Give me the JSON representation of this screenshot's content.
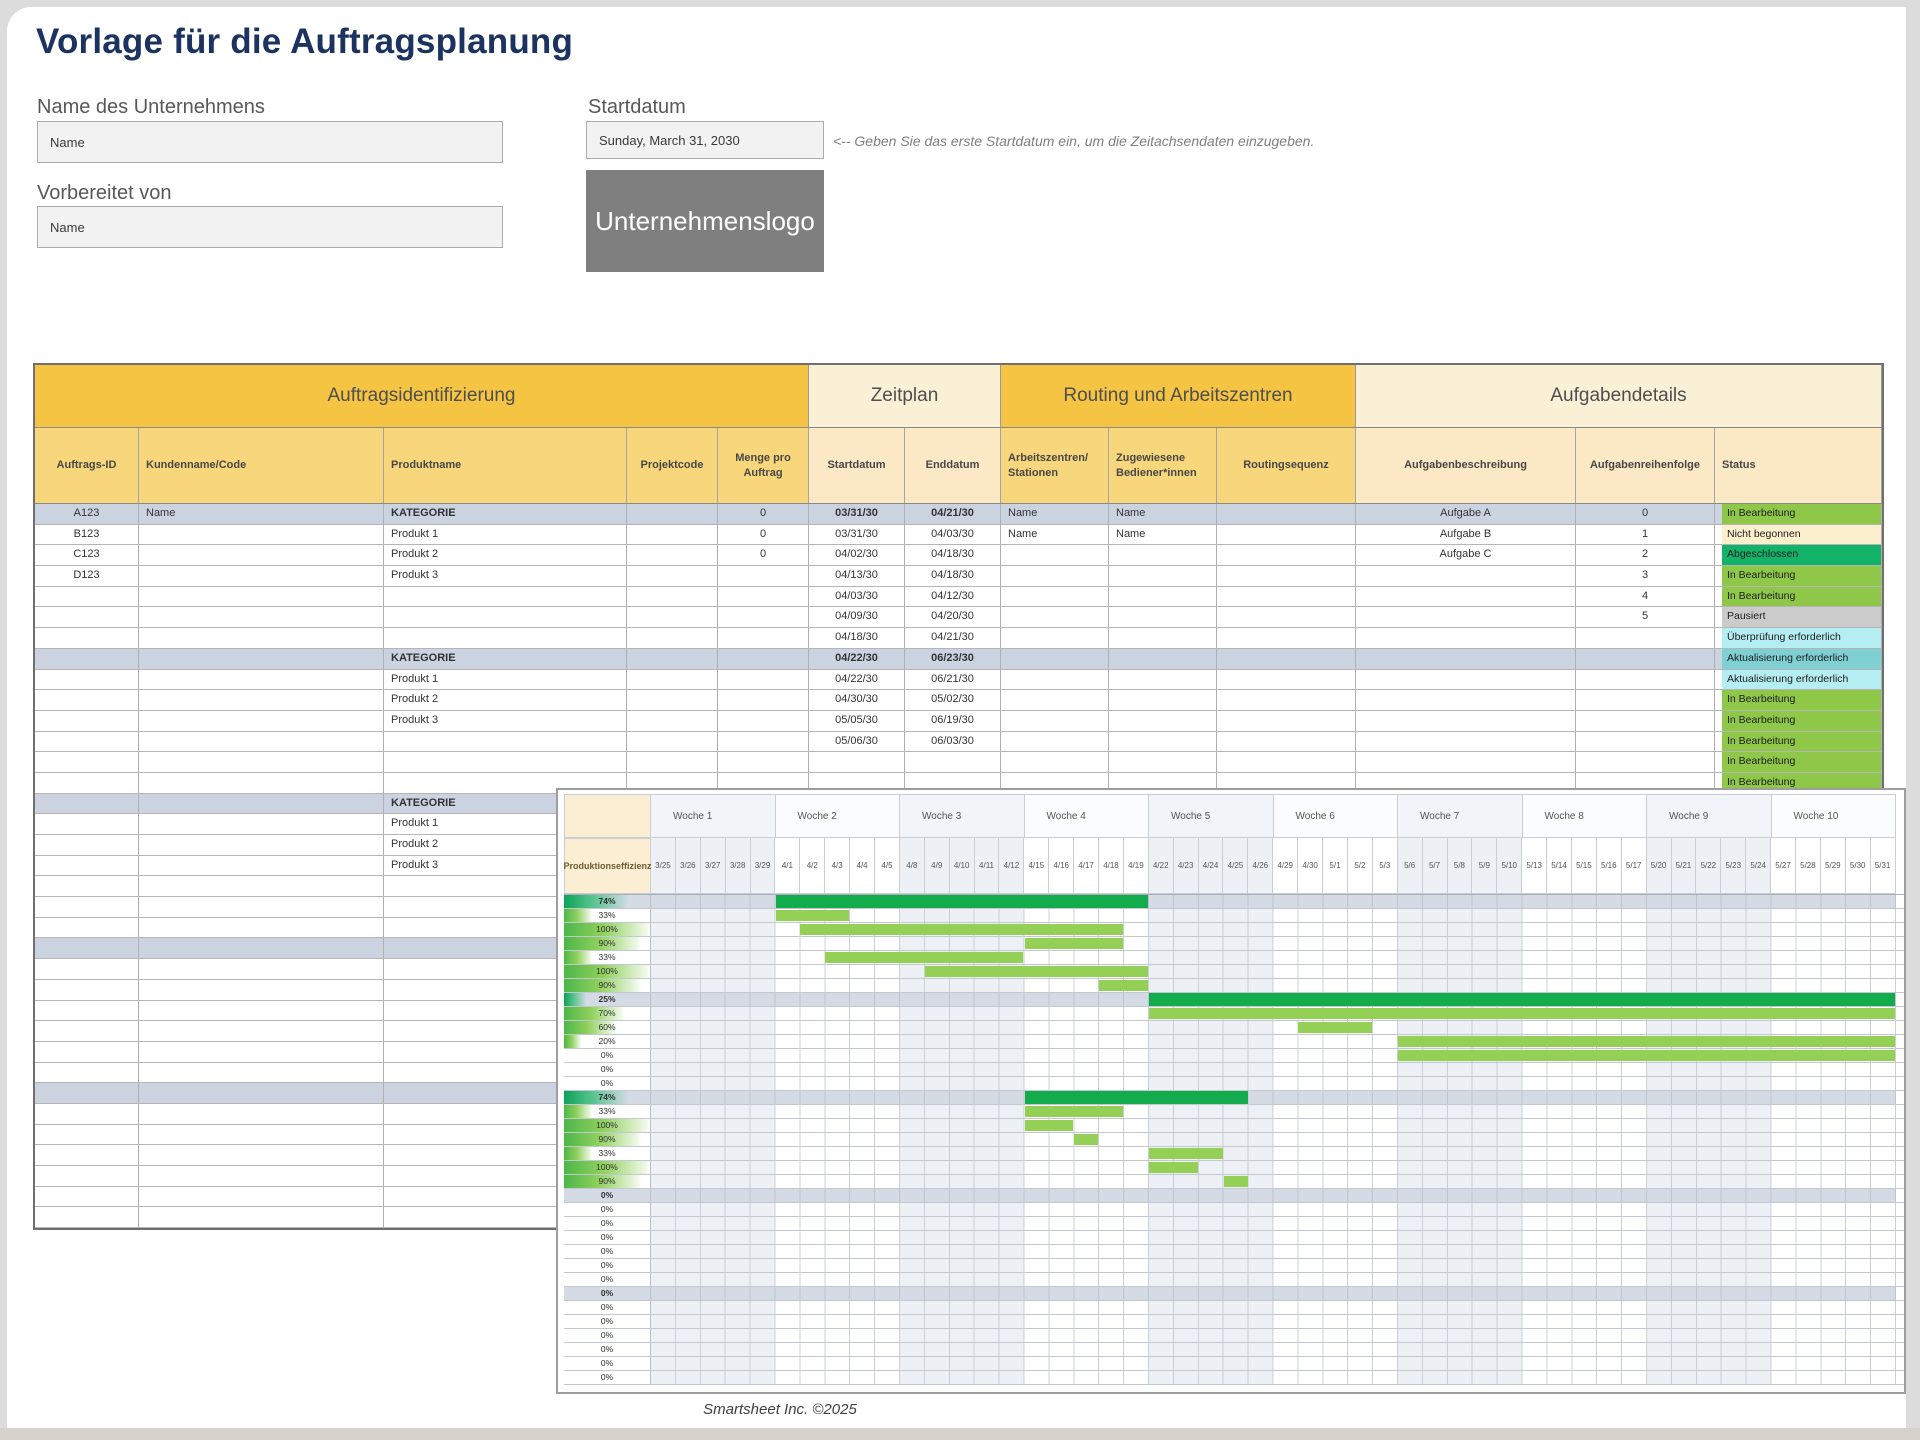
{
  "header": {
    "title": "Vorlage für die Auftragsplanung"
  },
  "form": {
    "company_label": "Name des Unternehmens",
    "company_value": "Name",
    "prepared_label": "Vorbereitet von",
    "prepared_value": "Name",
    "startdate_label": "Startdatum",
    "startdate_value": "Sunday, March 31, 2030",
    "hint": "<-- Geben Sie das erste Startdatum ein, um die Zeitachsendaten einzugeben.",
    "logo_text": "Unternehmenslogo"
  },
  "table": {
    "sections": [
      {
        "label": "Auftragsidentifizierung",
        "span": 5
      },
      {
        "label": "Zeitplan",
        "span": 2
      },
      {
        "label": "Routing und Arbeitszentren",
        "span": 3
      },
      {
        "label": "Aufgabendetails",
        "span": 3
      }
    ],
    "columns": [
      "Auftrags-ID",
      "Kundenname/Code",
      "Produktname",
      "Projektcode",
      "Menge pro Auftrag",
      "Startdatum",
      "Enddatum",
      "Arbeitszentren/ Stationen",
      "Zugewiesene Bediener*innen",
      "Routingsequenz",
      "Aufgabenbeschreibung",
      "Aufgabenreihenfolge",
      "Status"
    ],
    "rows": [
      {
        "cat": true,
        "sc": "green",
        "c": [
          "A123",
          "Name",
          "KATEGORIE",
          "",
          "0",
          "03/31/30",
          "04/21/30",
          "Name",
          "Name",
          "",
          "Aufgabe A",
          "0",
          "In Bearbeitung"
        ]
      },
      {
        "sc": "cream",
        "c": [
          "B123",
          "",
          "Produkt 1",
          "",
          "0",
          "03/31/30",
          "04/03/30",
          "Name",
          "Name",
          "",
          "Aufgabe B",
          "1",
          "Nicht begonnen"
        ]
      },
      {
        "sc": "emerald",
        "c": [
          "C123",
          "",
          "Produkt 2",
          "",
          "0",
          "04/02/30",
          "04/18/30",
          "",
          "",
          "",
          "Aufgabe C",
          "2",
          "Abgeschlossen"
        ]
      },
      {
        "sc": "green",
        "c": [
          "D123",
          "",
          "Produkt 3",
          "",
          "",
          "04/13/30",
          "04/18/30",
          "",
          "",
          "",
          "",
          "3",
          "In Bearbeitung"
        ]
      },
      {
        "sc": "green",
        "c": [
          "",
          "",
          "",
          "",
          "",
          "04/03/30",
          "04/12/30",
          "",
          "",
          "",
          "",
          "4",
          "In Bearbeitung"
        ]
      },
      {
        "sc": "gray",
        "c": [
          "",
          "",
          "",
          "",
          "",
          "04/09/30",
          "04/20/30",
          "",
          "",
          "",
          "",
          "5",
          "Pausiert"
        ]
      },
      {
        "sc": "cyan",
        "c": [
          "",
          "",
          "",
          "",
          "",
          "04/18/30",
          "04/21/30",
          "",
          "",
          "",
          "",
          "",
          "Überprüfung erforderlich"
        ]
      },
      {
        "cat": true,
        "sc": "teal",
        "c": [
          "",
          "",
          "KATEGORIE",
          "",
          "",
          "04/22/30",
          "06/23/30",
          "",
          "",
          "",
          "",
          "",
          "Aktualisierung erforderlich"
        ]
      },
      {
        "sc": "cyan",
        "c": [
          "",
          "",
          "Produkt 1",
          "",
          "",
          "04/22/30",
          "06/21/30",
          "",
          "",
          "",
          "",
          "",
          "Aktualisierung erforderlich"
        ]
      },
      {
        "sc": "green",
        "c": [
          "",
          "",
          "Produkt 2",
          "",
          "",
          "04/30/30",
          "05/02/30",
          "",
          "",
          "",
          "",
          "",
          "In Bearbeitung"
        ]
      },
      {
        "sc": "green",
        "c": [
          "",
          "",
          "Produkt 3",
          "",
          "",
          "05/05/30",
          "06/19/30",
          "",
          "",
          "",
          "",
          "",
          "In Bearbeitung"
        ]
      },
      {
        "sc": "green",
        "c": [
          "",
          "",
          "",
          "",
          "",
          "05/06/30",
          "06/03/30",
          "",
          "",
          "",
          "",
          "",
          "In Bearbeitung"
        ]
      },
      {
        "sc": "green",
        "c": [
          "",
          "",
          "",
          "",
          "",
          "",
          "",
          "",
          "",
          "",
          "",
          "",
          "In Bearbeitung"
        ]
      },
      {
        "sc": "green",
        "c": [
          "",
          "",
          "",
          "",
          "",
          "",
          "",
          "",
          "",
          "",
          "",
          "",
          "In Bearbeitung"
        ]
      },
      {
        "cat": true,
        "c": [
          "",
          "",
          "KATEGORIE",
          "",
          "",
          "",
          "",
          "",
          "",
          "",
          "",
          "",
          ""
        ]
      },
      {
        "c": [
          "",
          "",
          "Produkt 1",
          "",
          "",
          "",
          "",
          "",
          "",
          "",
          "",
          "",
          ""
        ]
      },
      {
        "c": [
          "",
          "",
          "Produkt 2",
          "",
          "",
          "",
          "",
          "",
          "",
          "",
          "",
          "",
          ""
        ]
      },
      {
        "c": [
          "",
          "",
          "Produkt 3",
          "",
          "",
          "",
          "",
          "",
          "",
          "",
          "",
          "",
          ""
        ]
      },
      {
        "c": []
      },
      {
        "c": []
      },
      {
        "c": []
      },
      {
        "cat": true,
        "c": []
      },
      {
        "c": []
      },
      {
        "c": []
      },
      {
        "c": []
      },
      {
        "c": []
      },
      {
        "c": []
      },
      {
        "c": []
      },
      {
        "cat": true,
        "c": []
      },
      {
        "c": []
      },
      {
        "c": []
      },
      {
        "c": []
      },
      {
        "c": []
      },
      {
        "c": []
      },
      {
        "c": []
      }
    ]
  },
  "gantt": {
    "corner_label": "Produktionseffizienz",
    "weeks": [
      "Woche 1",
      "Woche 2",
      "Woche 3",
      "Woche 4",
      "Woche 5",
      "Woche 6",
      "Woche 7",
      "Woche 8",
      "Woche 9",
      "Woche 10"
    ],
    "days": [
      "3/25",
      "3/26",
      "3/27",
      "3/28",
      "3/29",
      "4/1",
      "4/2",
      "4/3",
      "4/4",
      "4/5",
      "4/8",
      "4/9",
      "4/10",
      "4/11",
      "4/12",
      "4/15",
      "4/16",
      "4/17",
      "4/18",
      "4/19",
      "4/22",
      "4/23",
      "4/24",
      "4/25",
      "4/26",
      "4/29",
      "4/30",
      "5/1",
      "5/2",
      "5/3",
      "5/6",
      "5/7",
      "5/8",
      "5/9",
      "5/10",
      "5/13",
      "5/14",
      "5/15",
      "5/16",
      "5/17",
      "5/20",
      "5/21",
      "5/22",
      "5/23",
      "5/24",
      "5/27",
      "5/28",
      "5/29",
      "5/30",
      "5/31"
    ],
    "rows": [
      {
        "e": "74%",
        "b": 1,
        "bar": [
          5,
          19,
          1
        ]
      },
      {
        "e": "33%",
        "bar": [
          5,
          7,
          0
        ]
      },
      {
        "e": "100%",
        "bar": [
          6,
          18,
          0
        ]
      },
      {
        "e": "90%",
        "bar": [
          15,
          18,
          0
        ]
      },
      {
        "e": "33%",
        "bar": [
          7,
          14,
          0
        ]
      },
      {
        "e": "100%",
        "bar": [
          11,
          19,
          0
        ]
      },
      {
        "e": "90%",
        "bar": [
          18,
          19,
          0
        ]
      },
      {
        "e": "25%",
        "b": 1,
        "bar": [
          20,
          49,
          1
        ]
      },
      {
        "e": "70%",
        "bar": [
          20,
          49,
          0
        ]
      },
      {
        "e": "60%",
        "bar": [
          26,
          28,
          0
        ]
      },
      {
        "e": "20%",
        "bar": [
          30,
          49,
          0
        ]
      },
      {
        "e": "0%",
        "bar": [
          30,
          49,
          0
        ]
      },
      {
        "e": "0%"
      },
      {
        "e": "0%"
      },
      {
        "e": "74%",
        "b": 1,
        "bar": [
          15,
          23,
          1
        ]
      },
      {
        "e": "33%",
        "bar": [
          15,
          18,
          0
        ]
      },
      {
        "e": "100%",
        "bar": [
          15,
          16,
          0
        ]
      },
      {
        "e": "90%",
        "bar": [
          17,
          17,
          0
        ]
      },
      {
        "e": "33%",
        "bar": [
          20,
          22,
          0
        ]
      },
      {
        "e": "100%",
        "bar": [
          20,
          21,
          0
        ]
      },
      {
        "e": "90%",
        "bar": [
          23,
          23,
          0
        ]
      },
      {
        "e": "0%",
        "b": 1
      },
      {
        "e": "0%"
      },
      {
        "e": "0%"
      },
      {
        "e": "0%"
      },
      {
        "e": "0%"
      },
      {
        "e": "0%"
      },
      {
        "e": "0%"
      },
      {
        "e": "0%",
        "b": 1
      },
      {
        "e": "0%"
      },
      {
        "e": "0%"
      },
      {
        "e": "0%"
      },
      {
        "e": "0%"
      },
      {
        "e": "0%"
      },
      {
        "e": "0%"
      }
    ]
  },
  "footer": {
    "text": "Smartsheet Inc. ©2025"
  },
  "colors": {
    "accent_gold": "#F6C443",
    "accent_gold_light": "#F8D77C",
    "accent_cream": "#FAF0D6",
    "accent_cream_light": "#FBE8C4",
    "category_row": "#CBD3E0",
    "bar_dark": "#12AC4D",
    "bar_light": "#94D055",
    "status": {
      "green": "#8FC849",
      "cream": "#FCEFCD",
      "emerald": "#12B269",
      "gray": "#CBCBCB",
      "cyan": "#B4EDF2",
      "teal": "#7FD0D2"
    }
  }
}
